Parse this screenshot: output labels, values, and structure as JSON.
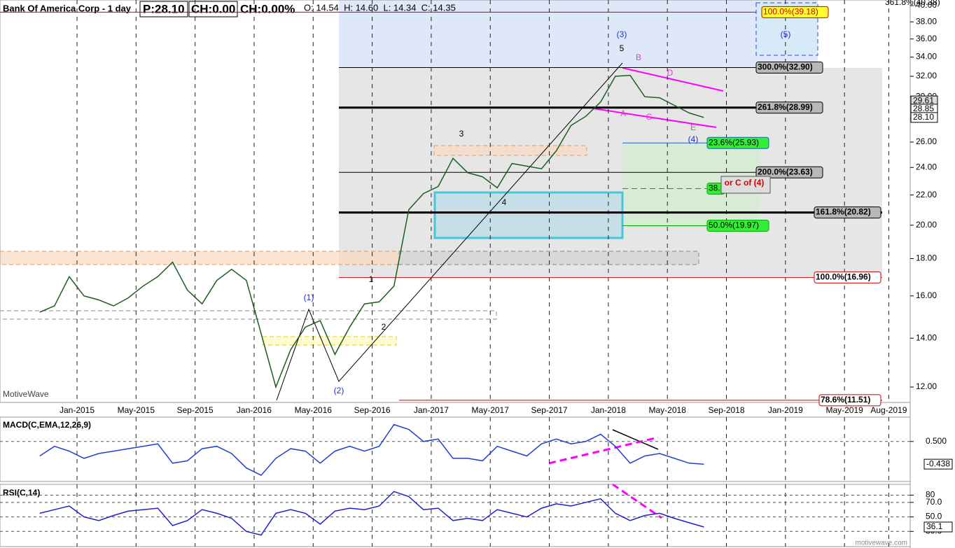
{
  "header": {
    "title": "Bank Of America Corp - 1 day",
    "price": "P:28.10",
    "change": "CH:0.00",
    "change_pct": "CH:0.00%",
    "ohlc": "O: 14.54  H: 14.60  L: 14.34  C: 14.35",
    "watermark": "MotiveWave",
    "footer": "motivewave.com"
  },
  "chart_data": {
    "type": "line",
    "log_scale": true,
    "grid": true,
    "color": "#1b5e20",
    "x": [
      "2014-10",
      "2014-11",
      "2014-12",
      "2015-01",
      "2015-02",
      "2015-03",
      "2015-04",
      "2015-05",
      "2015-06",
      "2015-07",
      "2015-08",
      "2015-09",
      "2015-10",
      "2015-11",
      "2015-12",
      "2016-01",
      "2016-02",
      "2016-03",
      "2016-04",
      "2016-05",
      "2016-06",
      "2016-07",
      "2016-08",
      "2016-09",
      "2016-10",
      "2016-11",
      "2016-12",
      "2017-01",
      "2017-02",
      "2017-03",
      "2017-04",
      "2017-05",
      "2017-06",
      "2017-07",
      "2017-08",
      "2017-09",
      "2017-10",
      "2017-11",
      "2017-12",
      "2018-01",
      "2018-02",
      "2018-03",
      "2018-04",
      "2018-05",
      "2018-06",
      "2018-07"
    ],
    "series": [
      {
        "name": "Bank Of America Corp",
        "color": "#1b5e20",
        "values": [
          15.2,
          15.5,
          17.0,
          16.0,
          15.8,
          15.5,
          15.9,
          16.5,
          17.0,
          17.8,
          16.3,
          15.6,
          16.8,
          17.4,
          16.8,
          14.2,
          12.0,
          13.5,
          14.5,
          14.8,
          13.3,
          14.5,
          15.6,
          15.7,
          16.5,
          21.0,
          22.1,
          22.6,
          24.7,
          23.6,
          23.3,
          22.5,
          24.3,
          24.1,
          23.9,
          25.3,
          27.4,
          28.2,
          29.5,
          32.0,
          32.1,
          30.0,
          29.9,
          29.2,
          28.5,
          28.1
        ]
      }
    ],
    "ylim": [
      11.3,
      40.6
    ],
    "yticks": [
      {
        "value": 12,
        "label": "12.00"
      },
      {
        "value": 14,
        "label": "14.00"
      },
      {
        "value": 16,
        "label": "16.00"
      },
      {
        "value": 18,
        "label": "18.00"
      },
      {
        "value": 20,
        "label": "20.00"
      },
      {
        "value": 22,
        "label": "22.00"
      },
      {
        "value": 24,
        "label": "24.00"
      },
      {
        "value": 26,
        "label": "26.00"
      },
      {
        "value": 28,
        "label": "28.00"
      },
      {
        "value": 30,
        "label": "30.00"
      },
      {
        "value": 32,
        "label": "32.00"
      },
      {
        "value": 34,
        "label": "34.00"
      },
      {
        "value": 36,
        "label": "36.00"
      },
      {
        "value": 38,
        "label": "38.00"
      },
      {
        "value": 40,
        "label": "40.00"
      }
    ],
    "xticks": [
      {
        "value": "2015-01",
        "label": "Jan-2015"
      },
      {
        "value": "2015-05",
        "label": "May-2015"
      },
      {
        "value": "2015-09",
        "label": "Sep-2015"
      },
      {
        "value": "2016-01",
        "label": "Jan-2016"
      },
      {
        "value": "2016-05",
        "label": "May-2016"
      },
      {
        "value": "2016-09",
        "label": "Sep-2016"
      },
      {
        "value": "2017-01",
        "label": "Jan-2017"
      },
      {
        "value": "2017-05",
        "label": "May-2017"
      },
      {
        "value": "2017-09",
        "label": "Sep-2017"
      },
      {
        "value": "2018-01",
        "label": "Jan-2018"
      },
      {
        "value": "2018-05",
        "label": "May-2018"
      },
      {
        "value": "2018-09",
        "label": "Sep-2018"
      },
      {
        "value": "2019-01",
        "label": "Jan-2019"
      },
      {
        "value": "2019-05",
        "label": "May-2019"
      },
      {
        "value": "2019-08",
        "label": "Aug-2019"
      }
    ],
    "price_markers": [
      {
        "value": 29.61,
        "label": "29.61"
      },
      {
        "value": 28.85,
        "label": "28.85"
      },
      {
        "value": 28.1,
        "label": "28.10"
      }
    ],
    "fib_levels": [
      {
        "value": 40.38,
        "label": "361.8%(40.38)",
        "color": "#888888"
      },
      {
        "value": 39.18,
        "label": "100.0%(39.18)",
        "color": "#cc0000"
      },
      {
        "value": 32.9,
        "label": "300.0%(32.90)",
        "color": "#000000"
      },
      {
        "value": 28.99,
        "label": "261.8%(28.99)",
        "color": "#000000"
      },
      {
        "value": 25.93,
        "label": "23.6%(25.93)",
        "color": "#1565c0"
      },
      {
        "value": 23.63,
        "label": "200.0%(23.63)",
        "color": "#000000"
      },
      {
        "value": 22.45,
        "label": "38.",
        "color": "#00aa00"
      },
      {
        "value": 20.82,
        "label": "161.8%(20.82)",
        "color": "#000000"
      },
      {
        "value": 19.97,
        "label": "50.0%(19.97)",
        "color": "#00aa00"
      },
      {
        "value": 16.96,
        "label": "100.0%(16.96)",
        "color": "#cc0000"
      },
      {
        "value": 11.51,
        "label": "78.6%(11.51)",
        "color": "#cc0000"
      }
    ],
    "wave_labels": [
      "(3)",
      "5",
      "3",
      "1",
      "2",
      "4",
      "(1)",
      "(2)",
      "(4)",
      "(5)",
      "or C of (4)",
      "A",
      "B",
      "C",
      "D",
      "E"
    ]
  },
  "macd": {
    "type": "line",
    "title": "MACD(C,EMA,12,26,9)",
    "color": "#1f3fd0",
    "values": [
      -0.1,
      0.3,
      0.1,
      -0.2,
      0.0,
      0.1,
      0.2,
      0.3,
      0.4,
      -0.4,
      -0.3,
      0.2,
      0.3,
      0.0,
      -0.6,
      -0.9,
      -0.2,
      0.2,
      0.1,
      -0.4,
      0.1,
      0.3,
      0.1,
      0.3,
      1.2,
      1.0,
      0.5,
      0.6,
      -0.2,
      -0.2,
      -0.3,
      0.3,
      0.1,
      -0.1,
      0.4,
      0.6,
      0.4,
      0.5,
      0.8,
      0.3,
      -0.4,
      -0.1,
      0.0,
      -0.2,
      -0.4,
      -0.438
    ],
    "ylim": [
      -1.1,
      1.45
    ],
    "yticks": [
      {
        "value": 0.5,
        "label": "0.500"
      }
    ],
    "current": {
      "value": -0.438,
      "label": "-0.438"
    }
  },
  "rsi": {
    "type": "line",
    "title": "RSI(C,14)",
    "color": "#1f1fd0",
    "values": [
      55,
      60,
      65,
      50,
      45,
      52,
      58,
      60,
      62,
      38,
      45,
      60,
      55,
      48,
      30,
      25,
      55,
      60,
      55,
      40,
      58,
      62,
      60,
      65,
      85,
      78,
      60,
      62,
      45,
      48,
      45,
      60,
      55,
      50,
      62,
      68,
      65,
      70,
      75,
      55,
      45,
      52,
      55,
      48,
      42,
      36.1
    ],
    "ylim": [
      11,
      93
    ],
    "yticks": [
      80,
      {
        "value": 70,
        "label": "70.0"
      },
      {
        "value": 50,
        "label": "50.0"
      },
      {
        "value": 30,
        "label": "30.0"
      }
    ],
    "current": 36.1
  }
}
